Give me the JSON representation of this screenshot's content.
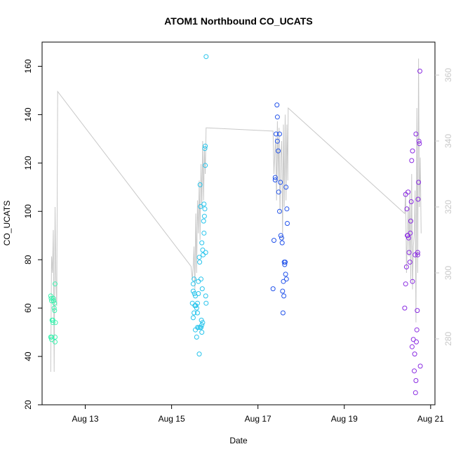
{
  "chart_data": {
    "type": "scatter",
    "title": "ATOM1 Northbound CO_UCATS",
    "xlabel": "Date",
    "ylabel": "CO_UCATS",
    "x_ticks": [
      "Aug 13",
      "Aug 15",
      "Aug 17",
      "Aug 19",
      "Aug 21"
    ],
    "x_tick_values": [
      13,
      15,
      17,
      19,
      21
    ],
    "xlim": [
      12,
      21.1
    ],
    "ylim": [
      20,
      170
    ],
    "y_ticks": [
      20,
      40,
      60,
      80,
      100,
      120,
      140,
      160
    ],
    "y2lim": [
      260,
      370
    ],
    "y2_ticks": [
      280,
      300,
      320,
      340,
      360
    ],
    "y2_color": "#c8c8c8",
    "grid": false,
    "legend": "none",
    "series": [
      {
        "color": "#3ef2b0",
        "x": [
          12.2,
          12.21,
          12.22,
          12.23,
          12.24,
          12.25,
          12.26,
          12.27,
          12.28,
          12.29,
          12.3,
          12.31,
          12.2,
          12.22,
          12.25,
          12.27,
          12.29,
          12.3,
          12.22,
          12.26,
          12.3
        ],
        "y": [
          65,
          64,
          63,
          55,
          55,
          54,
          64,
          63,
          60,
          59,
          70,
          54,
          48,
          48,
          55,
          63,
          62,
          48,
          47,
          64,
          46
        ]
      },
      {
        "color": "#27c4ec",
        "x": [
          15.48,
          15.5,
          15.5,
          15.52,
          15.53,
          15.55,
          15.56,
          15.58,
          15.6,
          15.6,
          15.62,
          15.63,
          15.64,
          15.65,
          15.66,
          15.67,
          15.68,
          15.69,
          15.7,
          15.7,
          15.71,
          15.72,
          15.73,
          15.74,
          15.75,
          15.76,
          15.77,
          15.78,
          15.78,
          15.79,
          15.8,
          15.8,
          15.52,
          15.55,
          15.58,
          15.6,
          15.62,
          15.64,
          15.66,
          15.68,
          15.7,
          15.72,
          15.75,
          15.77,
          15.79,
          15.5,
          15.54
        ],
        "y": [
          62,
          56,
          70,
          72,
          66,
          65,
          61,
          60,
          62,
          58,
          71,
          52,
          81,
          79,
          111,
          102,
          72,
          55,
          53,
          87,
          68,
          84,
          82,
          96,
          91,
          98,
          126,
          127,
          119,
          65,
          62,
          164,
          58,
          51,
          48,
          52,
          66,
          41,
          52,
          52,
          50,
          54,
          103,
          101,
          83,
          67,
          61
        ]
      },
      {
        "color": "#2253ea",
        "x": [
          17.35,
          17.37,
          17.4,
          17.42,
          17.44,
          17.45,
          17.47,
          17.48,
          17.5,
          17.52,
          17.53,
          17.55,
          17.56,
          17.57,
          17.58,
          17.59,
          17.6,
          17.61,
          17.62,
          17.63,
          17.64,
          17.65,
          17.66,
          17.67,
          17.68,
          17.4,
          17.45,
          17.5
        ],
        "y": [
          68,
          88,
          114,
          132,
          144,
          139,
          125,
          108,
          100,
          112,
          90,
          89,
          87,
          67,
          58,
          71,
          65,
          79,
          78,
          79,
          74,
          110,
          72,
          101,
          95,
          113,
          129,
          132
        ]
      },
      {
        "color": "#8a2be2",
        "x": [
          20.4,
          20.42,
          20.44,
          20.45,
          20.47,
          20.49,
          20.5,
          20.52,
          20.54,
          20.55,
          20.57,
          20.58,
          20.6,
          20.62,
          20.63,
          20.65,
          20.66,
          20.67,
          20.68,
          20.69,
          20.7,
          20.71,
          20.72,
          20.73,
          20.74,
          20.75,
          20.76,
          20.42,
          20.48,
          20.53,
          20.58,
          20.64,
          20.7,
          20.46,
          20.56,
          20.66
        ],
        "y": [
          60,
          70,
          77,
          101,
          90,
          89,
          83,
          79,
          96,
          104,
          44,
          71,
          47,
          34,
          41,
          25,
          30,
          46,
          51,
          59,
          82,
          105,
          112,
          129,
          128,
          158,
          36,
          107,
          108,
          91,
          125,
          82,
          83,
          90,
          121,
          132
        ]
      }
    ],
    "line_series": {
      "color": "#c8c8c8",
      "axis": "right",
      "x": [
        12.2,
        12.22,
        12.24,
        12.26,
        12.28,
        12.3,
        12.32,
        12.34,
        12.36,
        15.45,
        15.48,
        15.5,
        15.52,
        15.54,
        15.56,
        15.58,
        15.6,
        15.62,
        15.64,
        15.66,
        15.68,
        15.7,
        15.72,
        15.74,
        15.76,
        15.78,
        15.8,
        15.82,
        17.35,
        17.37,
        17.39,
        17.41,
        17.43,
        17.45,
        17.47,
        17.49,
        17.51,
        17.53,
        17.55,
        17.57,
        17.59,
        17.61,
        17.63,
        17.65,
        17.67,
        17.69,
        17.7,
        20.4,
        20.42,
        20.44,
        20.46,
        20.48,
        20.5,
        20.52,
        20.54,
        20.56,
        20.58,
        20.6,
        20.62,
        20.64,
        20.66,
        20.68,
        20.7,
        20.72,
        20.74,
        20.76,
        20.78
      ],
      "y": [
        270,
        305,
        300,
        313,
        270,
        320,
        298,
        290,
        355,
        302,
        298,
        302,
        308,
        295,
        318,
        300,
        322,
        312,
        328,
        310,
        333,
        320,
        340,
        322,
        338,
        330,
        344,
        344,
        343,
        330,
        336,
        341,
        322,
        346,
        328,
        344,
        318,
        335,
        340,
        310,
        345,
        320,
        348,
        322,
        345,
        328,
        350,
        318,
        325,
        300,
        310,
        320,
        305,
        325,
        298,
        330,
        295,
        308,
        312,
        325,
        285,
        350,
        300,
        365,
        320,
        335,
        312
      ]
    }
  }
}
